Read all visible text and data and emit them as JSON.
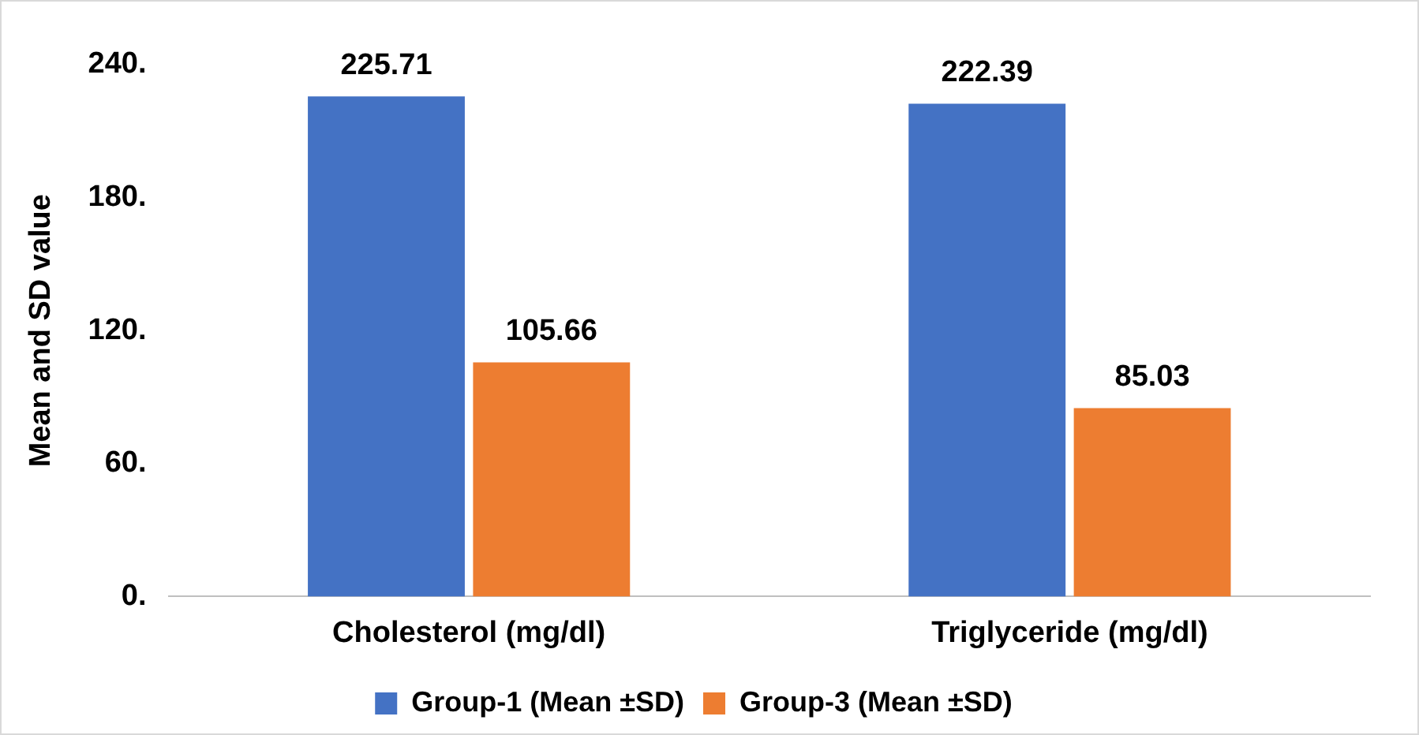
{
  "chart_data": {
    "type": "bar",
    "ylabel": "Mean and SD value",
    "categories": [
      "Cholesterol (mg/dl)",
      "Triglyceride (mg/dl)"
    ],
    "series": [
      {
        "name": "Group-1 (Mean ±SD)",
        "color": "#4472c4",
        "values": [
          225.71,
          222.39
        ]
      },
      {
        "name": "Group-3 (Mean ±SD)",
        "color": "#ed7d31",
        "values": [
          105.66,
          85.03
        ]
      }
    ],
    "ylim": [
      0,
      240
    ],
    "yticks": [
      {
        "value": 0,
        "label": "0."
      },
      {
        "value": 60,
        "label": "60."
      },
      {
        "value": 120,
        "label": "120."
      },
      {
        "value": 180,
        "label": "180."
      },
      {
        "value": 240,
        "label": "240."
      }
    ],
    "grid": false,
    "legend": "bottom",
    "data_labels": true
  }
}
